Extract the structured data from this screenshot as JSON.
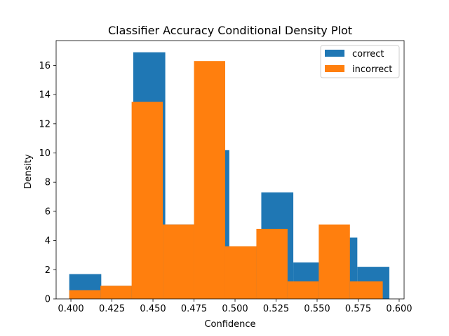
{
  "chart_data": {
    "type": "bar",
    "title": "Classifier Accuracy Conditional Density Plot",
    "xlabel": "Confidence",
    "ylabel": "Density",
    "xlim": [
      0.391,
      0.603
    ],
    "ylim": [
      0,
      17.7
    ],
    "xticks": [
      "0.400",
      "0.425",
      "0.450",
      "0.475",
      "0.500",
      "0.525",
      "0.550",
      "0.575",
      "0.600"
    ],
    "yticks": [
      "0",
      "2",
      "4",
      "6",
      "8",
      "10",
      "12",
      "14",
      "16"
    ],
    "legend_position": "top-right",
    "grid": false,
    "series": [
      {
        "name": "correct",
        "color": "#1f77b4",
        "bins": [
          {
            "x0": 0.399,
            "x1": 0.4185,
            "value": 1.7
          },
          {
            "x0": 0.4185,
            "x1": 0.438,
            "value": 0.9
          },
          {
            "x0": 0.438,
            "x1": 0.4575,
            "value": 16.9
          },
          {
            "x0": 0.4575,
            "x1": 0.477,
            "value": 5.1
          },
          {
            "x0": 0.477,
            "x1": 0.4965,
            "value": 10.2
          },
          {
            "x0": 0.4965,
            "x1": 0.516,
            "value": 3.6
          },
          {
            "x0": 0.516,
            "x1": 0.5355,
            "value": 7.3
          },
          {
            "x0": 0.5355,
            "x1": 0.555,
            "value": 2.5
          },
          {
            "x0": 0.555,
            "x1": 0.5745,
            "value": 4.2
          },
          {
            "x0": 0.5745,
            "x1": 0.594,
            "value": 2.2
          }
        ]
      },
      {
        "name": "incorrect",
        "color": "#ff7f0e",
        "bins": [
          {
            "x0": 0.399,
            "x1": 0.418,
            "value": 0.6
          },
          {
            "x0": 0.418,
            "x1": 0.437,
            "value": 0.9
          },
          {
            "x0": 0.437,
            "x1": 0.456,
            "value": 13.5
          },
          {
            "x0": 0.456,
            "x1": 0.475,
            "value": 5.1
          },
          {
            "x0": 0.475,
            "x1": 0.494,
            "value": 16.3
          },
          {
            "x0": 0.494,
            "x1": 0.513,
            "value": 3.6
          },
          {
            "x0": 0.513,
            "x1": 0.532,
            "value": 4.8
          },
          {
            "x0": 0.532,
            "x1": 0.551,
            "value": 1.2
          },
          {
            "x0": 0.551,
            "x1": 0.57,
            "value": 5.1
          },
          {
            "x0": 0.57,
            "x1": 0.59,
            "value": 1.2
          }
        ]
      }
    ]
  }
}
